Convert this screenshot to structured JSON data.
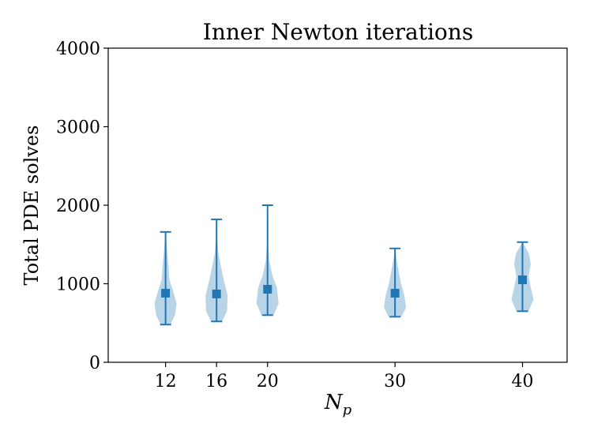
{
  "chart_data": {
    "type": "violin",
    "title": "Inner Newton iterations",
    "xlabel_main": "N",
    "xlabel_sub": "p",
    "ylabel": "Total PDE solves",
    "ylim": [
      0,
      4000
    ],
    "yticks": [
      0,
      1000,
      2000,
      3000,
      4000
    ],
    "x": [
      12,
      16,
      20,
      30,
      40
    ],
    "xlim": [
      7.5,
      43.5
    ],
    "series": [
      {
        "x": 12,
        "min": 480,
        "max": 1660,
        "mean": 880,
        "density": [
          [
            480,
            0.45
          ],
          [
            600,
            0.85
          ],
          [
            750,
            1.0
          ],
          [
            900,
            0.7
          ],
          [
            1050,
            0.35
          ],
          [
            1250,
            0.25
          ],
          [
            1450,
            0.12
          ],
          [
            1660,
            0.0
          ]
        ]
      },
      {
        "x": 16,
        "min": 520,
        "max": 1820,
        "mean": 870,
        "density": [
          [
            520,
            0.5
          ],
          [
            650,
            0.95
          ],
          [
            850,
            1.0
          ],
          [
            1050,
            0.65
          ],
          [
            1250,
            0.35
          ],
          [
            1400,
            0.15
          ],
          [
            1600,
            0.05
          ],
          [
            1820,
            0.0
          ]
        ]
      },
      {
        "x": 20,
        "min": 600,
        "max": 2000,
        "mean": 930,
        "density": [
          [
            600,
            0.55
          ],
          [
            750,
            1.0
          ],
          [
            950,
            0.85
          ],
          [
            1100,
            0.45
          ],
          [
            1300,
            0.15
          ],
          [
            1500,
            0.06
          ],
          [
            2000,
            0.0
          ]
        ]
      },
      {
        "x": 30,
        "min": 580,
        "max": 1450,
        "mean": 880,
        "density": [
          [
            580,
            0.6
          ],
          [
            700,
            1.0
          ],
          [
            850,
            0.85
          ],
          [
            1000,
            0.55
          ],
          [
            1150,
            0.35
          ],
          [
            1300,
            0.15
          ],
          [
            1450,
            0.0
          ]
        ]
      },
      {
        "x": 40,
        "min": 650,
        "max": 1530,
        "mean": 1050,
        "density": [
          [
            650,
            0.55
          ],
          [
            800,
            1.0
          ],
          [
            950,
            0.75
          ],
          [
            1100,
            0.55
          ],
          [
            1250,
            0.75
          ],
          [
            1380,
            0.6
          ],
          [
            1530,
            0.0
          ]
        ]
      }
    ],
    "colors": {
      "body": "#aecde3",
      "line": "#1f77b4",
      "mean": "#1f77b4"
    },
    "grid": false,
    "legend": "none"
  }
}
